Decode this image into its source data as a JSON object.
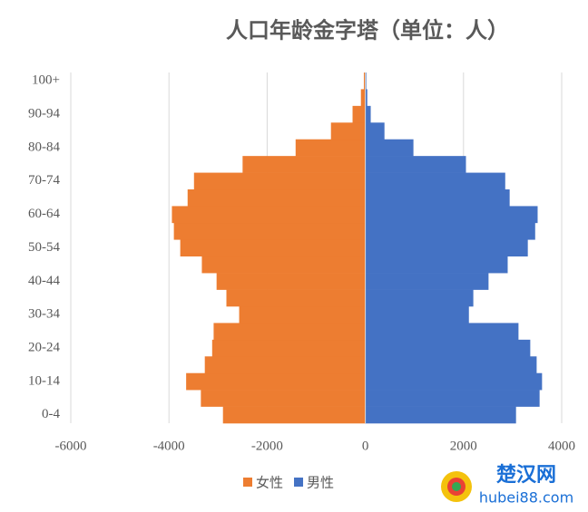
{
  "chart_data": {
    "type": "pyramid",
    "title": "人口年龄金字塔（单位：人）",
    "categories": [
      "0-4",
      null,
      "10-14",
      null,
      "20-24",
      null,
      "30-34",
      null,
      "40-44",
      null,
      "50-54",
      null,
      "60-64",
      null,
      "70-74",
      null,
      "80-84",
      null,
      "90-94",
      null,
      "100+"
    ],
    "series": [
      {
        "name": "女性",
        "color": "#ed7d31",
        "values": [
          -2900,
          -3350,
          -3650,
          -3270,
          -3120,
          -3090,
          -2570,
          -2830,
          -3030,
          -3330,
          -3770,
          -3900,
          -3940,
          -3620,
          -3490,
          -2500,
          -1420,
          -700,
          -260,
          -90,
          -30
        ]
      },
      {
        "name": "男性",
        "color": "#4472c4",
        "values": [
          3070,
          3550,
          3600,
          3490,
          3360,
          3120,
          2110,
          2200,
          2510,
          2900,
          3310,
          3460,
          3510,
          2940,
          2850,
          2050,
          980,
          390,
          110,
          40,
          20
        ]
      }
    ],
    "xlim": [
      -6000,
      4000
    ],
    "xticks": [
      -6000,
      -4000,
      -2000,
      0,
      2000,
      4000
    ],
    "grid": true,
    "legend": "bottom"
  },
  "watermark": {
    "name": "楚汉网",
    "url": "hubei88.com"
  }
}
